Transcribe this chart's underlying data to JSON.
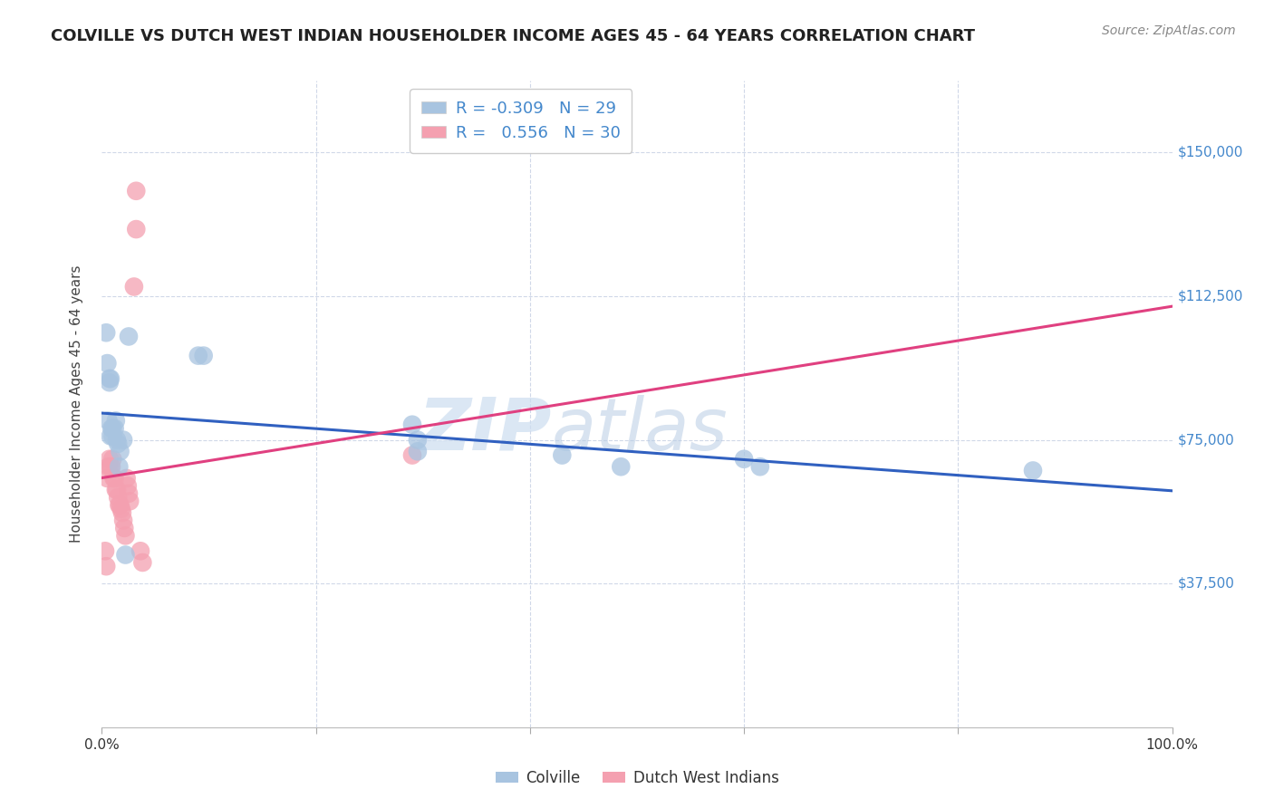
{
  "title": "COLVILLE VS DUTCH WEST INDIAN HOUSEHOLDER INCOME AGES 45 - 64 YEARS CORRELATION CHART",
  "source": "Source: ZipAtlas.com",
  "ylabel": "Householder Income Ages 45 - 64 years",
  "xlim": [
    0,
    1
  ],
  "ylim": [
    0,
    168750
  ],
  "yticks": [
    0,
    37500,
    75000,
    112500,
    150000
  ],
  "ytick_labels": [
    "",
    "$37,500",
    "$75,000",
    "$112,500",
    "$150,000"
  ],
  "colville_color": "#a8c4e0",
  "dutch_color": "#f4a0b0",
  "colville_line_color": "#3060c0",
  "dutch_line_color": "#e04080",
  "legend_r_colville": "-0.309",
  "legend_n_colville": "29",
  "legend_r_dutch": "0.556",
  "legend_n_dutch": "30",
  "colville_x": [
    0.004,
    0.005,
    0.006,
    0.007,
    0.007,
    0.008,
    0.008,
    0.009,
    0.01,
    0.01,
    0.012,
    0.013,
    0.014,
    0.015,
    0.016,
    0.017,
    0.02,
    0.022,
    0.025,
    0.09,
    0.095,
    0.29,
    0.295,
    0.295,
    0.43,
    0.485,
    0.6,
    0.615,
    0.87
  ],
  "colville_y": [
    103000,
    95000,
    80000,
    90000,
    91000,
    91000,
    76000,
    78000,
    78000,
    76000,
    78000,
    80000,
    75000,
    74000,
    68000,
    72000,
    75000,
    45000,
    102000,
    97000,
    97000,
    79000,
    75000,
    72000,
    71000,
    68000,
    70000,
    68000,
    67000
  ],
  "dutch_x": [
    0.003,
    0.004,
    0.005,
    0.006,
    0.007,
    0.008,
    0.009,
    0.01,
    0.011,
    0.012,
    0.013,
    0.014,
    0.015,
    0.016,
    0.017,
    0.018,
    0.019,
    0.02,
    0.021,
    0.022,
    0.023,
    0.024,
    0.025,
    0.026,
    0.03,
    0.032,
    0.032,
    0.036,
    0.038,
    0.29
  ],
  "dutch_y": [
    46000,
    42000,
    65000,
    68000,
    70000,
    68000,
    68000,
    70000,
    65000,
    65000,
    62000,
    62000,
    60000,
    58000,
    58000,
    57000,
    56000,
    54000,
    52000,
    50000,
    65000,
    63000,
    61000,
    59000,
    115000,
    130000,
    140000,
    46000,
    43000,
    71000
  ],
  "background_color": "#ffffff",
  "grid_color": "#d0d8e8",
  "watermark_color": "#c8d8f0"
}
